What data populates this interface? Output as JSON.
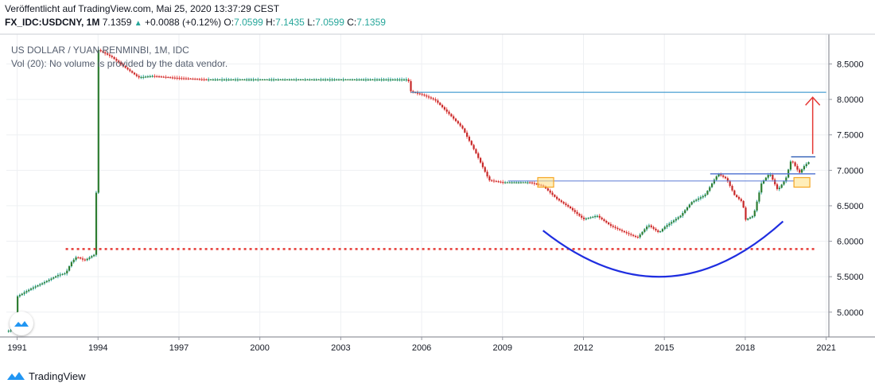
{
  "header": {
    "published": "Veröffentlicht auf TradingView.com, Mai 25, 2020 13:37:29 CEST",
    "symbol": "FX_IDC:USDCNY, 1M",
    "last": "7.1359",
    "change": "+0.0088 (+0.12%)",
    "o_label": "O:",
    "o": "7.0599",
    "h_label": "H:",
    "h": "7.1435",
    "l_label": "L:",
    "l": "7.0599",
    "c_label": "C:",
    "c": "7.1359"
  },
  "legend": {
    "title": "US DOLLAR / YUAN RENMINBI, 1M, IDC",
    "vol": "Vol (20): No volume is provided by the data vendor."
  },
  "footer": {
    "brand": "TradingView"
  },
  "colors": {
    "up": "#26a69a",
    "down": "#ef5350",
    "body_up": "#2e7d32",
    "body_down": "#c62828",
    "resistance": "#5b7bd5",
    "level": "#1e88c8",
    "support": "#e53935",
    "arc": "#1f2ee0",
    "arrow": "#e53935",
    "marker": "#f5a623"
  },
  "chart_data": {
    "type": "candlestick",
    "title": "US DOLLAR / YUAN RENMINBI, 1M, IDC",
    "x_ticks": [
      "1991",
      "1994",
      "1997",
      "2000",
      "2003",
      "2006",
      "2009",
      "2012",
      "2015",
      "2018",
      "2021"
    ],
    "y_ticks": [
      "8.5000",
      "8.0000",
      "7.5000",
      "7.0000",
      "6.5000",
      "6.0000",
      "5.5000",
      "5.0000"
    ],
    "x_range": [
      1990.6,
      2021.1
    ],
    "y_range": [
      4.65,
      8.92
    ],
    "series": [
      {
        "t": 1990.6,
        "v": 4.73
      },
      {
        "t": 1990.9,
        "v": 4.75
      },
      {
        "t": 1991.0,
        "v": 5.22
      },
      {
        "t": 1991.5,
        "v": 5.33
      },
      {
        "t": 1992.0,
        "v": 5.42
      },
      {
        "t": 1992.5,
        "v": 5.52
      },
      {
        "t": 1992.8,
        "v": 5.55
      },
      {
        "t": 1993.0,
        "v": 5.7
      },
      {
        "t": 1993.2,
        "v": 5.78
      },
      {
        "t": 1993.5,
        "v": 5.73
      },
      {
        "t": 1993.9,
        "v": 5.82
      },
      {
        "t": 1994.0,
        "v": 8.7
      },
      {
        "t": 1994.5,
        "v": 8.6
      },
      {
        "t": 1995.0,
        "v": 8.45
      },
      {
        "t": 1995.5,
        "v": 8.31
      },
      {
        "t": 1996.0,
        "v": 8.33
      },
      {
        "t": 1997.0,
        "v": 8.3
      },
      {
        "t": 1998.0,
        "v": 8.28
      },
      {
        "t": 2000.0,
        "v": 8.28
      },
      {
        "t": 2005.5,
        "v": 8.28
      },
      {
        "t": 2005.6,
        "v": 8.11
      },
      {
        "t": 2006.0,
        "v": 8.07
      },
      {
        "t": 2006.5,
        "v": 7.99
      },
      {
        "t": 2007.0,
        "v": 7.8
      },
      {
        "t": 2007.5,
        "v": 7.6
      },
      {
        "t": 2008.0,
        "v": 7.25
      },
      {
        "t": 2008.5,
        "v": 6.86
      },
      {
        "t": 2009.0,
        "v": 6.83
      },
      {
        "t": 2010.0,
        "v": 6.83
      },
      {
        "t": 2010.5,
        "v": 6.78
      },
      {
        "t": 2011.0,
        "v": 6.6
      },
      {
        "t": 2011.5,
        "v": 6.47
      },
      {
        "t": 2012.0,
        "v": 6.31
      },
      {
        "t": 2012.5,
        "v": 6.36
      },
      {
        "t": 2013.0,
        "v": 6.22
      },
      {
        "t": 2013.5,
        "v": 6.13
      },
      {
        "t": 2014.0,
        "v": 6.05
      },
      {
        "t": 2014.4,
        "v": 6.23
      },
      {
        "t": 2014.8,
        "v": 6.12
      },
      {
        "t": 2015.0,
        "v": 6.2
      },
      {
        "t": 2015.6,
        "v": 6.36
      },
      {
        "t": 2016.0,
        "v": 6.55
      },
      {
        "t": 2016.5,
        "v": 6.65
      },
      {
        "t": 2016.9,
        "v": 6.9
      },
      {
        "t": 2017.0,
        "v": 6.95
      },
      {
        "t": 2017.3,
        "v": 6.88
      },
      {
        "t": 2017.6,
        "v": 6.65
      },
      {
        "t": 2017.9,
        "v": 6.55
      },
      {
        "t": 2018.0,
        "v": 6.3
      },
      {
        "t": 2018.3,
        "v": 6.36
      },
      {
        "t": 2018.6,
        "v": 6.82
      },
      {
        "t": 2018.9,
        "v": 6.96
      },
      {
        "t": 2019.2,
        "v": 6.72
      },
      {
        "t": 2019.5,
        "v": 6.88
      },
      {
        "t": 2019.7,
        "v": 7.15
      },
      {
        "t": 2019.9,
        "v": 7.03
      },
      {
        "t": 2020.0,
        "v": 6.96
      },
      {
        "t": 2020.2,
        "v": 7.07
      },
      {
        "t": 2020.4,
        "v": 7.13
      }
    ],
    "annotations": {
      "resistance_line_1": {
        "y": 6.85,
        "x_start": 2009.2,
        "x_end": 2019.8
      },
      "resistance_line_2": {
        "y": 6.95,
        "x_start": 2016.7,
        "x_end": 2020.6
      },
      "level_line": {
        "y": 8.1,
        "x_start": 2005.6,
        "x_end": 2021.0
      },
      "top_line": {
        "y": 7.19,
        "x_start": 2019.7,
        "x_end": 2020.6
      },
      "support_dotted": {
        "y": 5.89,
        "x_start": 1992.8,
        "x_end": 2020.6
      },
      "arc": {
        "x_start": 2010.5,
        "y_start": 6.15,
        "x_mid": 2015.0,
        "y_mid": 5.5,
        "x_end": 2019.4,
        "y_end": 6.28
      },
      "arrow": {
        "x": 2020.5,
        "y_from": 7.23,
        "y_to": 8.03
      },
      "markers": [
        {
          "x": 2010.6,
          "y": 6.83
        },
        {
          "x": 2020.1,
          "y": 6.83
        }
      ]
    }
  }
}
